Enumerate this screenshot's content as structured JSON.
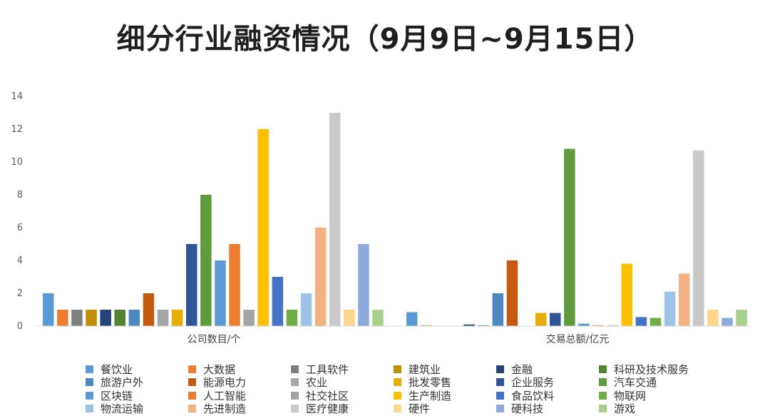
{
  "chart_data": {
    "type": "bar",
    "title": "细分行业融资情况（9月9日~9月15日）",
    "categories": [
      "公司数目/个",
      "交易总额/亿元"
    ],
    "ylim": [
      0,
      14
    ],
    "yticks": [
      0,
      2,
      4,
      6,
      8,
      10,
      12,
      14
    ],
    "grid": false,
    "legend_position": "bottom",
    "series": [
      {
        "name": "餐饮业",
        "color": "#5B9BD5",
        "values": [
          2,
          0.85
        ]
      },
      {
        "name": "大数据",
        "color": "#ED7D31",
        "values": [
          1,
          0.05
        ]
      },
      {
        "name": "工具软件",
        "color": "#7F7F7F",
        "values": [
          1,
          0
        ]
      },
      {
        "name": "建筑业",
        "color": "#BF9000",
        "values": [
          1,
          0
        ]
      },
      {
        "name": "金融",
        "color": "#264478",
        "values": [
          1,
          0.1
        ]
      },
      {
        "name": "科研及技术服务",
        "color": "#548235",
        "values": [
          1,
          0.05
        ]
      },
      {
        "name": "旅游户外",
        "color": "#4E88C0",
        "values": [
          1,
          2
        ]
      },
      {
        "name": "能源电力",
        "color": "#C55A11",
        "values": [
          2,
          4
        ]
      },
      {
        "name": "农业",
        "color": "#A5A5A5",
        "values": [
          1,
          0
        ]
      },
      {
        "name": "批发零售",
        "color": "#E6AE00",
        "values": [
          1,
          0.8
        ]
      },
      {
        "name": "企业服务",
        "color": "#2F5597",
        "values": [
          5,
          0.8
        ]
      },
      {
        "name": "汽车交通",
        "color": "#5E9B3C",
        "values": [
          8,
          10.8
        ]
      },
      {
        "name": "区块链",
        "color": "#5B9BD5",
        "values": [
          4,
          0.15
        ]
      },
      {
        "name": "人工智能",
        "color": "#ED7D31",
        "values": [
          5,
          0.05
        ]
      },
      {
        "name": "社交社区",
        "color": "#A5A5A5",
        "values": [
          1,
          0.05
        ]
      },
      {
        "name": "生产制造",
        "color": "#FFC000",
        "values": [
          12,
          3.8
        ]
      },
      {
        "name": "食品饮料",
        "color": "#4472C4",
        "values": [
          3,
          0.55
        ]
      },
      {
        "name": "物联网",
        "color": "#70AD47",
        "values": [
          1,
          0.5
        ]
      },
      {
        "name": "物流运输",
        "color": "#9DC3E6",
        "values": [
          2,
          2.1
        ]
      },
      {
        "name": "先进制造",
        "color": "#F4B183",
        "values": [
          6,
          3.2
        ]
      },
      {
        "name": "医疗健康",
        "color": "#C9C9C9",
        "values": [
          13,
          10.7
        ]
      },
      {
        "name": "硬件",
        "color": "#FFD78C",
        "values": [
          1,
          1
        ]
      },
      {
        "name": "硬科技",
        "color": "#8FAADC",
        "values": [
          5,
          0.5
        ]
      },
      {
        "name": "游戏",
        "color": "#A9D18E",
        "values": [
          1,
          1
        ]
      }
    ]
  }
}
